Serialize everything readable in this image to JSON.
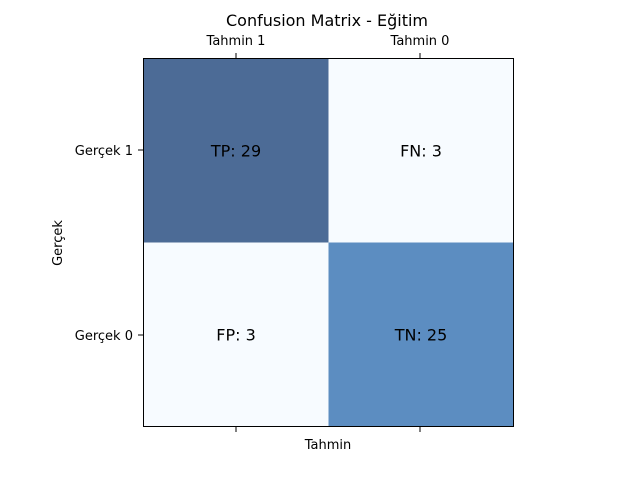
{
  "chart_data": {
    "type": "heatmap",
    "title": "Confusion Matrix - Eğitim",
    "xlabel": "Tahmin",
    "ylabel": "Gerçek",
    "x_categories": [
      "Tahmin 1",
      "Tahmin 0"
    ],
    "y_categories": [
      "Gerçek 1",
      "Gerçek 0"
    ],
    "values": [
      [
        29,
        3
      ],
      [
        3,
        25
      ]
    ],
    "cell_labels": [
      [
        "TP: 29",
        "FN: 3"
      ],
      [
        "FP: 3",
        "TN: 25"
      ]
    ],
    "x_tick_position": "top",
    "colors": {
      "low": "#f7fbff",
      "high": "#4c6b96",
      "mid": "#5689bf"
    },
    "grid": false
  }
}
